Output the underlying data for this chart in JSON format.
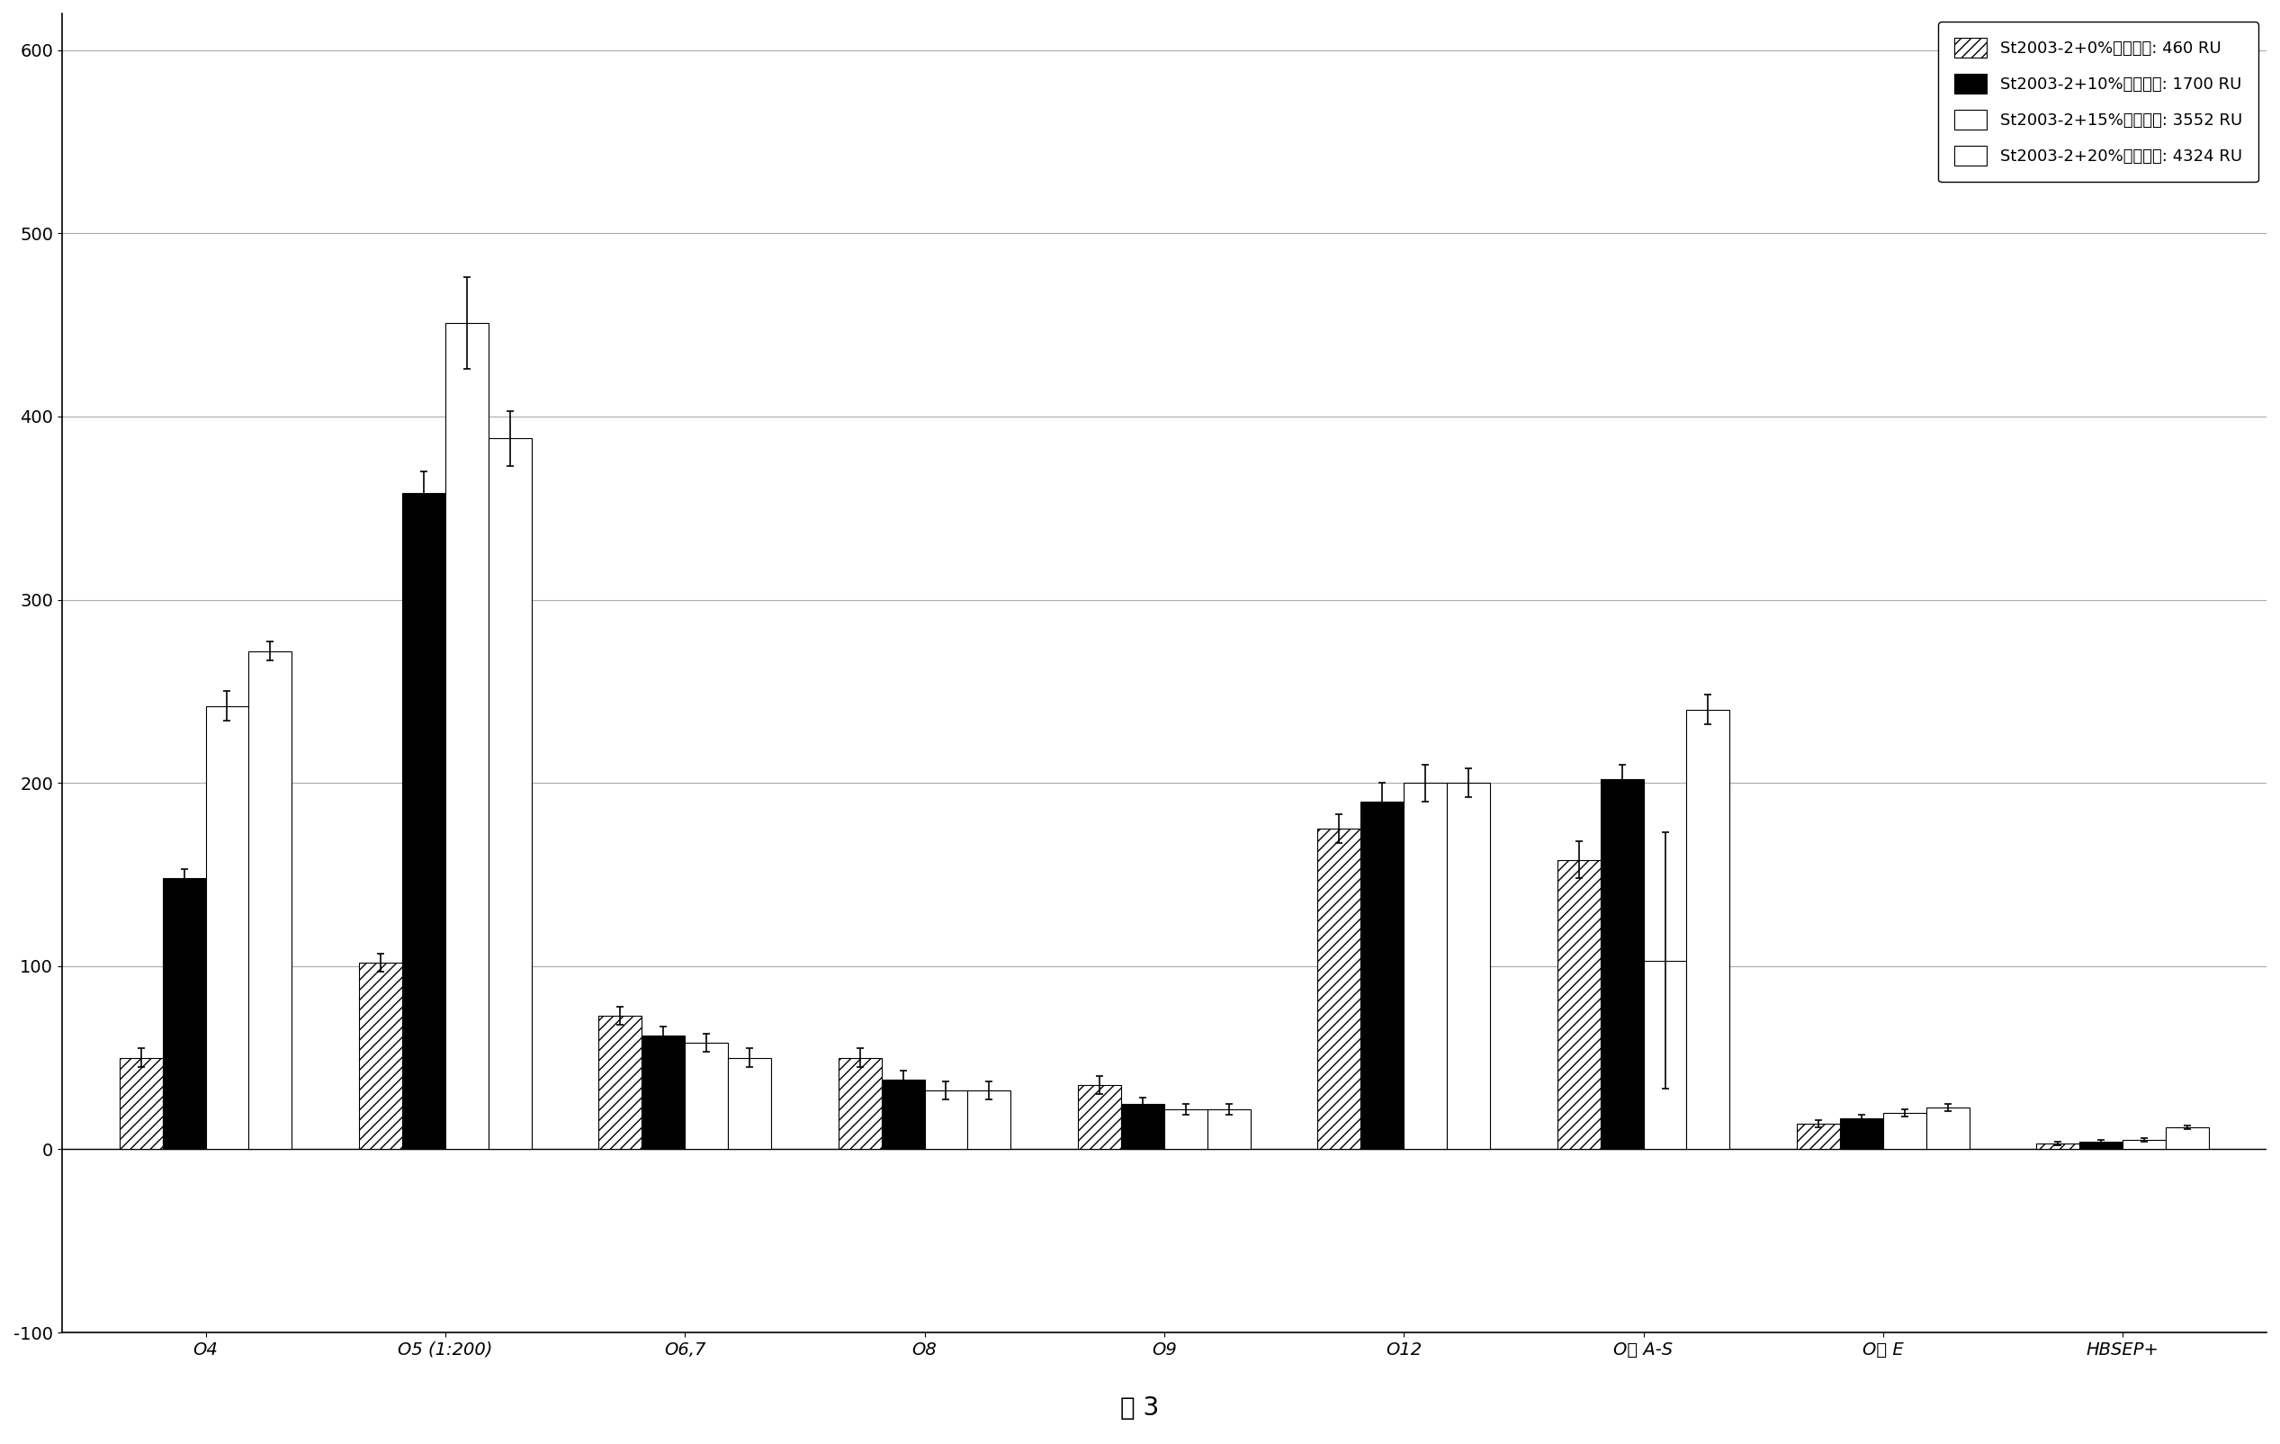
{
  "categories": [
    "O4",
    "O5 (1:200)",
    "O6,7",
    "O8",
    "O9",
    "O12",
    "O多 A-S",
    "O多 E",
    "HBSEP+"
  ],
  "series": [
    {
      "label": "St2003-2+0%血红蛋白: 460 RU",
      "values": [
        50,
        102,
        73,
        50,
        35,
        175,
        158,
        14,
        3
      ],
      "errors": [
        5,
        5,
        5,
        5,
        5,
        8,
        10,
        2,
        1
      ],
      "hatch": "///",
      "facecolor": "white",
      "edgecolor": "black"
    },
    {
      "label": "St2003-2+10%血红蛋白: 1700 RU",
      "values": [
        148,
        358,
        62,
        38,
        25,
        190,
        202,
        17,
        4
      ],
      "errors": [
        5,
        12,
        5,
        5,
        3,
        10,
        8,
        2,
        1
      ],
      "hatch": "",
      "facecolor": "black",
      "edgecolor": "black"
    },
    {
      "label": "St2003-2+15%血红蛋白: 3552 RU",
      "values": [
        242,
        451,
        58,
        32,
        22,
        200,
        103,
        20,
        5
      ],
      "errors": [
        8,
        25,
        5,
        5,
        3,
        10,
        70,
        2,
        1
      ],
      "hatch": "",
      "facecolor": "white",
      "edgecolor": "black"
    },
    {
      "label": "St2003-2+20%血红蛋白: 4324 RU",
      "values": [
        272,
        388,
        50,
        32,
        22,
        200,
        240,
        23,
        12
      ],
      "errors": [
        5,
        15,
        5,
        5,
        3,
        8,
        8,
        2,
        1
      ],
      "hatch": "===",
      "facecolor": "white",
      "edgecolor": "black"
    }
  ],
  "ylim": [
    -100,
    620
  ],
  "yticks": [
    -100,
    0,
    100,
    200,
    300,
    400,
    500,
    600
  ],
  "title": "图 3",
  "title_fontsize": 20,
  "axis_fontsize": 14,
  "legend_fontsize": 13,
  "bar_width": 0.18,
  "background_color": "white",
  "grid_color": "#aaaaaa"
}
